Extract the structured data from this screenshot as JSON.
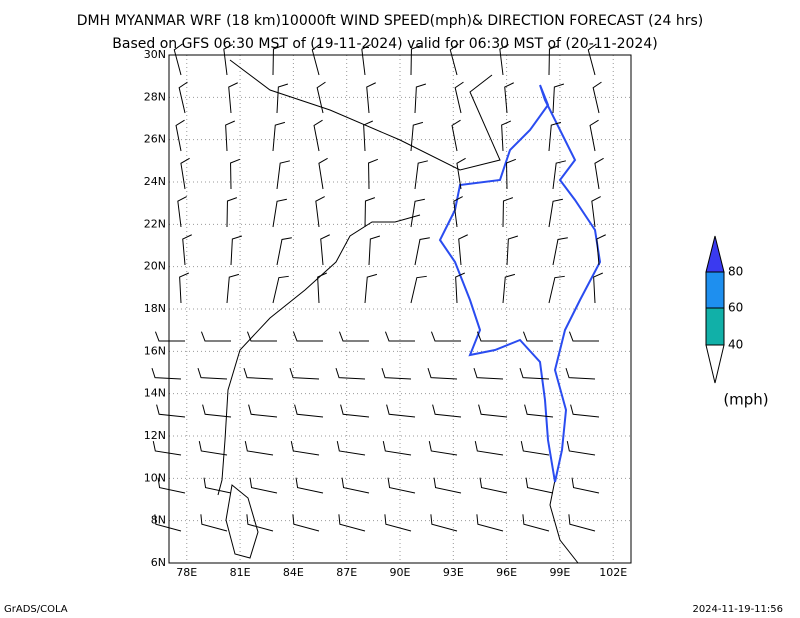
{
  "header": {
    "title": "DMH MYANMAR WRF (18 km)10000ft WIND SPEED(mph)& DIRECTION FORECAST (24 hrs)",
    "subtitle": "Based on GFS 06:30 MST of (19-11-2024) valid for 06:30 MST of (20-11-2024)"
  },
  "map": {
    "xlim": [
      77,
      103
    ],
    "ylim": [
      6,
      30
    ],
    "xticks": [
      {
        "value": 78,
        "label": "78E"
      },
      {
        "value": 81,
        "label": "81E"
      },
      {
        "value": 84,
        "label": "84E"
      },
      {
        "value": 87,
        "label": "87E"
      },
      {
        "value": 90,
        "label": "90E"
      },
      {
        "value": 93,
        "label": "93E"
      },
      {
        "value": 96,
        "label": "96E"
      },
      {
        "value": 99,
        "label": "99E"
      },
      {
        "value": 102,
        "label": "102E"
      }
    ],
    "yticks": [
      {
        "value": 6,
        "label": "6N"
      },
      {
        "value": 8,
        "label": "8N"
      },
      {
        "value": 10,
        "label": "10N"
      },
      {
        "value": 12,
        "label": "12N"
      },
      {
        "value": 14,
        "label": "14N"
      },
      {
        "value": 16,
        "label": "16N"
      },
      {
        "value": 18,
        "label": "18N"
      },
      {
        "value": 20,
        "label": "20N"
      },
      {
        "value": 22,
        "label": "22N"
      },
      {
        "value": 24,
        "label": "24N"
      },
      {
        "value": 26,
        "label": "26N"
      },
      {
        "value": 28,
        "label": "28N"
      },
      {
        "value": 30,
        "label": "30N"
      }
    ]
  },
  "legend": {
    "levels": [
      "40",
      "60",
      "80"
    ],
    "unit": "(mph)"
  },
  "footer": {
    "left": "GrADS/COLA",
    "right": "2024-11-19-11:56"
  }
}
